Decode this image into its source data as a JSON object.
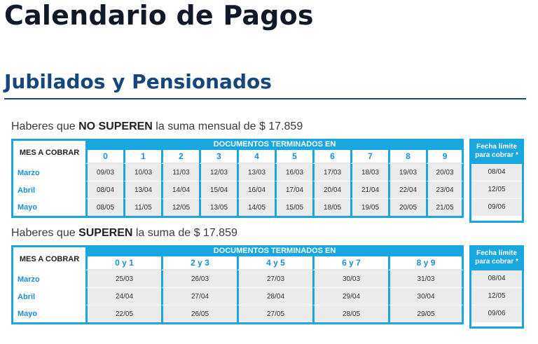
{
  "page_title": "Calendario de Pagos",
  "section_title": "Jubilados y Pensionados",
  "table1": {
    "subtitle_pre": "Haberes que ",
    "subtitle_bold": "NO SUPEREN",
    "subtitle_post": " la suma mensual de $ 17.859",
    "mes_header": "MES A COBRAR",
    "doc_header": "DOCUMENTOS TERMINADOS EN",
    "digits": [
      "0",
      "1",
      "2",
      "3",
      "4",
      "5",
      "6",
      "7",
      "8",
      "9"
    ],
    "rows": [
      {
        "mes": "Marzo",
        "values": [
          "09/03",
          "10/03",
          "11/03",
          "12/03",
          "13/03",
          "16/03",
          "17/03",
          "18/03",
          "19/03",
          "20/03"
        ],
        "limite": "08/04"
      },
      {
        "mes": "Abril",
        "values": [
          "08/04",
          "13/04",
          "14/04",
          "15/04",
          "16/04",
          "17/04",
          "20/04",
          "21/04",
          "22/04",
          "23/04"
        ],
        "limite": "12/05"
      },
      {
        "mes": "Mayo",
        "values": [
          "08/05",
          "11/05",
          "12/05",
          "13/05",
          "14/05",
          "15/05",
          "18/05",
          "19/05",
          "20/05",
          "21/05"
        ],
        "limite": "09/06"
      }
    ],
    "limite_header_1": "Fecha límite",
    "limite_header_2": "para cobrar *"
  },
  "table2": {
    "subtitle_pre": "Haberes que ",
    "subtitle_bold": "SUPEREN",
    "subtitle_post": " la suma de $ 17.859",
    "mes_header": "MES A COBRAR",
    "doc_header": "DOCUMENTOS TERMINADOS EN",
    "digits": [
      "0 y 1",
      "2 y 3",
      "4 y 5",
      "6 y 7",
      "8 y 9"
    ],
    "rows": [
      {
        "mes": "Marzo",
        "values": [
          "25/03",
          "26/03",
          "27/03",
          "30/03",
          "31/03"
        ],
        "limite": "08/04"
      },
      {
        "mes": "Abril",
        "values": [
          "24/04",
          "27/04",
          "28/04",
          "29/04",
          "30/04"
        ],
        "limite": "12/05"
      },
      {
        "mes": "Mayo",
        "values": [
          "22/05",
          "26/05",
          "27/05",
          "28/05",
          "29/05"
        ],
        "limite": "09/06"
      }
    ],
    "limite_header_1": "Fecha límite",
    "limite_header_2": "para cobrar *"
  }
}
